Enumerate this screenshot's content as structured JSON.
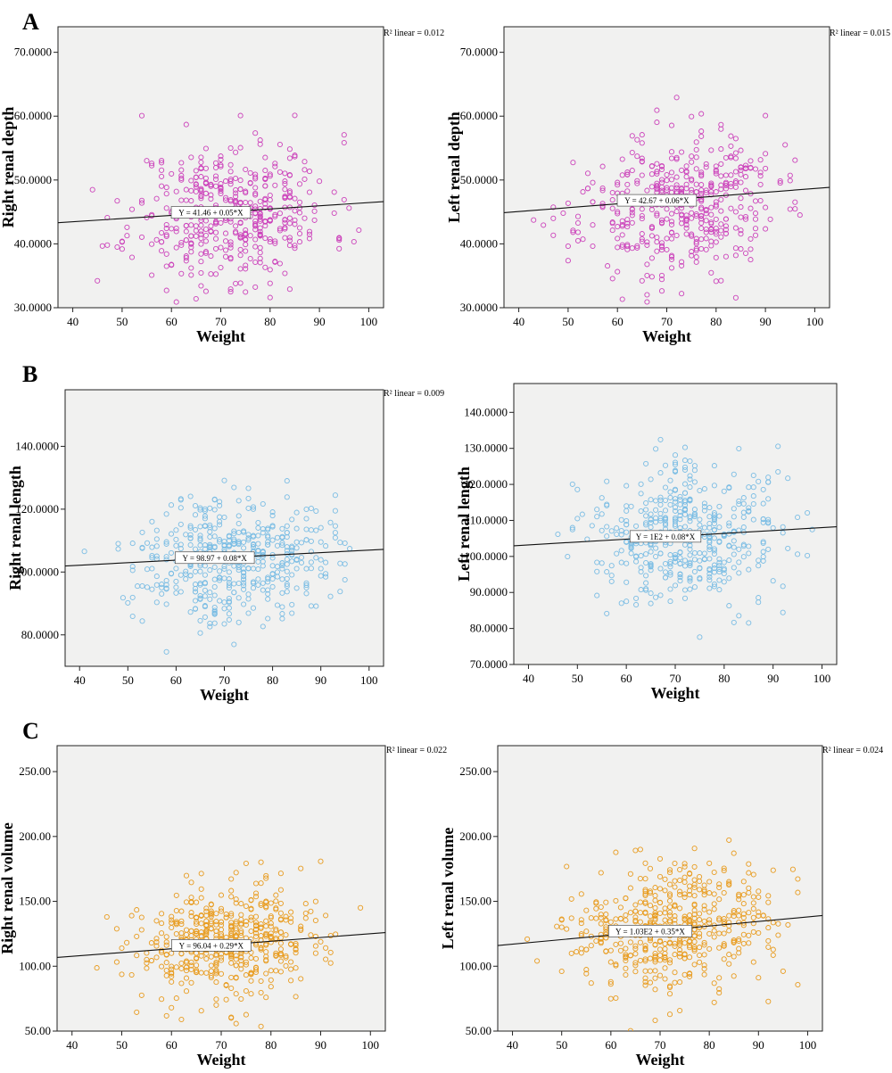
{
  "panels": [
    {
      "letter": "A"
    },
    {
      "letter": "B"
    },
    {
      "letter": "C"
    }
  ],
  "chart_data": [
    {
      "type": "scatter",
      "panel": "A",
      "xlabel": "Weight",
      "ylabel": "Right renal depth",
      "xlim": [
        37,
        103
      ],
      "ylim": [
        30,
        74
      ],
      "xticks": [
        40,
        50,
        60,
        70,
        80,
        90,
        100
      ],
      "yticks": [
        30,
        40,
        50,
        60,
        70
      ],
      "ytick_labels": [
        "30.0000",
        "40.0000",
        "50.0000",
        "60.0000",
        "70.0000"
      ],
      "fit": {
        "intercept": 41.46,
        "slope": 0.05,
        "equation": "Y = 41.46 + 0.05*X",
        "r2_label": "R² linear = 0.012"
      },
      "n_points": 450,
      "mean_x": 72,
      "sd_x": 10,
      "mean_y": 45,
      "sd_y": 5.5,
      "marker_color": "#cc44bb",
      "background": "#f1f1f0",
      "seed": 11
    },
    {
      "type": "scatter",
      "panel": "A",
      "xlabel": "Weight",
      "ylabel": "Left renal depth",
      "xlim": [
        37,
        103
      ],
      "ylim": [
        30,
        74
      ],
      "xticks": [
        40,
        50,
        60,
        70,
        80,
        90,
        100
      ],
      "yticks": [
        30,
        40,
        50,
        60,
        70
      ],
      "ytick_labels": [
        "30.0000",
        "40.0000",
        "50.0000",
        "60.0000",
        "70.0000"
      ],
      "fit": {
        "intercept": 42.67,
        "slope": 0.06,
        "equation": "Y = 42.67 + 0.06*X",
        "r2_label": "R² linear = 0.015"
      },
      "n_points": 450,
      "mean_x": 72,
      "sd_x": 10,
      "mean_y": 46,
      "sd_y": 5.5,
      "marker_color": "#cc44bb",
      "background": "#f1f1f0",
      "seed": 23
    },
    {
      "type": "scatter",
      "panel": "B",
      "xlabel": "Weight",
      "ylabel": "Right renal length",
      "xlim": [
        37,
        103
      ],
      "ylim": [
        70,
        158
      ],
      "xticks": [
        40,
        50,
        60,
        70,
        80,
        90,
        100
      ],
      "yticks": [
        80,
        100,
        120,
        140
      ],
      "ytick_labels": [
        "80.0000",
        "100.0000",
        "120.0000",
        "140.0000"
      ],
      "fit": {
        "intercept": 98.97,
        "slope": 0.08,
        "equation": "Y = 98.97 + 0.08*X",
        "r2_label": "R² linear = 0.009"
      },
      "n_points": 450,
      "mean_x": 72,
      "sd_x": 10,
      "mean_y": 105,
      "sd_y": 10,
      "marker_color": "#7bbde4",
      "background": "#f1f1f0",
      "seed": 37
    },
    {
      "type": "scatter",
      "panel": "B",
      "xlabel": "Weight",
      "ylabel": "Left renal length",
      "xlim": [
        37,
        103
      ],
      "ylim": [
        70,
        148
      ],
      "xticks": [
        40,
        50,
        60,
        70,
        80,
        90,
        100
      ],
      "yticks": [
        70,
        80,
        90,
        100,
        110,
        120,
        130,
        140
      ],
      "ytick_labels": [
        "70.0000",
        "80.0000",
        "90.0000",
        "100.0000",
        "110.0000",
        "120.0000",
        "130.0000",
        "140.0000"
      ],
      "fit": {
        "intercept": 100,
        "slope": 0.08,
        "equation": "Y = 1E2 + 0.08*X",
        "r2_label": ""
      },
      "n_points": 450,
      "mean_x": 72,
      "sd_x": 10,
      "mean_y": 106,
      "sd_y": 10,
      "marker_color": "#7bbde4",
      "background": "#f1f1f0",
      "seed": 41
    },
    {
      "type": "scatter",
      "panel": "C",
      "xlabel": "Weight",
      "ylabel": "Right renal volume",
      "xlim": [
        37,
        103
      ],
      "ylim": [
        50,
        270
      ],
      "xticks": [
        40,
        50,
        60,
        70,
        80,
        90,
        100
      ],
      "yticks": [
        50,
        100,
        150,
        200,
        250
      ],
      "ytick_labels": [
        "50.00",
        "100.00",
        "150.00",
        "200.00",
        "250.00"
      ],
      "fit": {
        "intercept": 96.04,
        "slope": 0.29,
        "equation": "Y = 96.04 + 0.29*X",
        "r2_label": "R² linear = 0.022"
      },
      "n_points": 480,
      "mean_x": 72,
      "sd_x": 10,
      "mean_y": 118,
      "sd_y": 22,
      "marker_color": "#e89c20",
      "background": "#f1f1f0",
      "seed": 53
    },
    {
      "type": "scatter",
      "panel": "C",
      "xlabel": "Weight",
      "ylabel": "Left renal volume",
      "xlim": [
        37,
        103
      ],
      "ylim": [
        50,
        270
      ],
      "xticks": [
        40,
        50,
        60,
        70,
        80,
        90,
        100
      ],
      "yticks": [
        50,
        100,
        150,
        200,
        250
      ],
      "ytick_labels": [
        "50.00",
        "100.00",
        "150.00",
        "200.00",
        "250.00"
      ],
      "fit": {
        "intercept": 103,
        "slope": 0.35,
        "equation": "Y = 1.03E2 + 0.35*X",
        "r2_label": "R² linear = 0.024"
      },
      "n_points": 480,
      "mean_x": 72,
      "sd_x": 10,
      "mean_y": 128,
      "sd_y": 24,
      "marker_color": "#e89c20",
      "background": "#f1f1f0",
      "seed": 67
    }
  ]
}
